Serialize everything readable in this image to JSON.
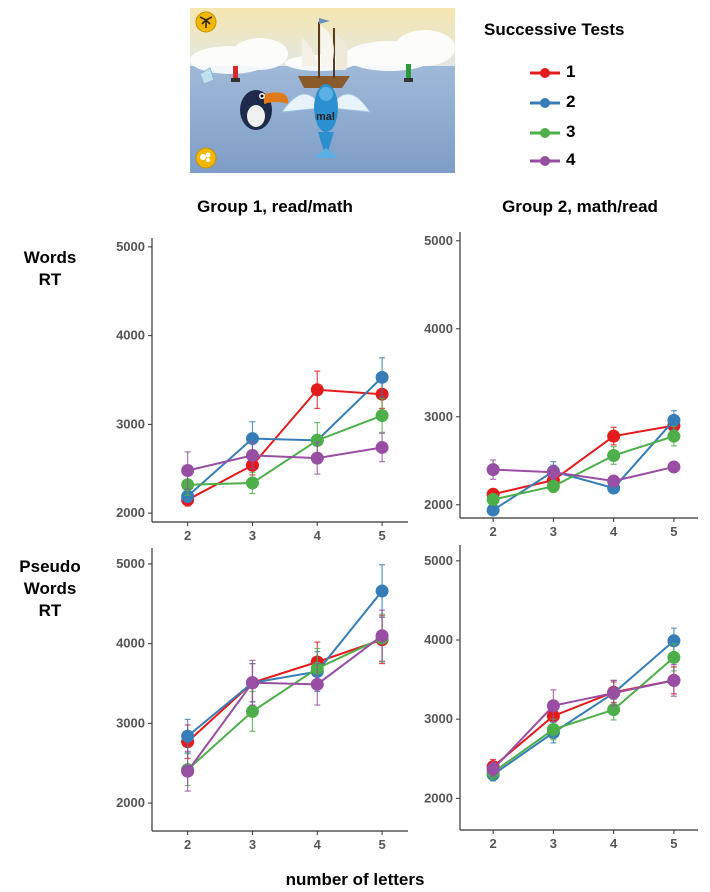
{
  "legend": {
    "title": "Successive Tests",
    "items": [
      {
        "label": "1",
        "color": "#e41a1c"
      },
      {
        "label": "2",
        "color": "#377eb8"
      },
      {
        "label": "3",
        "color": "#4daf4a"
      },
      {
        "label": "4",
        "color": "#984ea3"
      }
    ]
  },
  "column_titles": [
    "Group 1, read/math",
    "Group 2, math/read"
  ],
  "row_labels": [
    "Words\nRT",
    "Pseudo\nWords\nRT"
  ],
  "xlabel": "number of letters",
  "game_image": {
    "word": "mal",
    "icons": [
      "palm-tree-icon",
      "shell-icon",
      "toucan-icon",
      "flying-fish-icon",
      "ship-icon",
      "buoy-icon"
    ]
  },
  "chart_data": [
    {
      "type": "line",
      "title": "Group 1, read/math",
      "row": "Words RT",
      "x": [
        2,
        3,
        4,
        5
      ],
      "ylim": [
        1900,
        5100
      ],
      "yticks": [
        2000,
        3000,
        4000,
        5000
      ],
      "series": [
        {
          "name": "1",
          "values": [
            2150,
            2540,
            3390,
            3340
          ],
          "err": [
            70,
            110,
            210,
            160
          ]
        },
        {
          "name": "2",
          "values": [
            2190,
            2840,
            2820,
            3530
          ],
          "err": [
            70,
            190,
            0,
            220
          ]
        },
        {
          "name": "3",
          "values": [
            2320,
            2340,
            2820,
            3100
          ],
          "err": [
            120,
            120,
            200,
            190
          ]
        },
        {
          "name": "4",
          "values": [
            2480,
            2650,
            2620,
            2740
          ],
          "err": [
            210,
            150,
            180,
            160
          ]
        }
      ]
    },
    {
      "type": "line",
      "title": "Group 2, math/read",
      "row": "Words RT",
      "x": [
        2,
        3,
        4,
        5
      ],
      "ylim": [
        1850,
        5100
      ],
      "yticks": [
        2000,
        3000,
        4000,
        5000
      ],
      "series": [
        {
          "name": "1",
          "values": [
            2120,
            2280,
            2780,
            2900
          ],
          "err": [
            60,
            70,
            100,
            90
          ]
        },
        {
          "name": "2",
          "values": [
            1940,
            2380,
            2190,
            2960
          ],
          "err": [
            50,
            110,
            60,
            110
          ]
        },
        {
          "name": "3",
          "values": [
            2060,
            2210,
            2560,
            2780
          ],
          "err": [
            60,
            70,
            100,
            110
          ]
        },
        {
          "name": "4",
          "values": [
            2400,
            2370,
            2270,
            2430
          ],
          "err": [
            110,
            80,
            60,
            60
          ]
        }
      ]
    },
    {
      "type": "line",
      "title": "Group 1, read/math",
      "row": "Pseudo Words RT",
      "x": [
        2,
        3,
        4,
        5
      ],
      "ylim": [
        1650,
        5200
      ],
      "yticks": [
        2000,
        3000,
        4000,
        5000
      ],
      "series": [
        {
          "name": "1",
          "values": [
            2770,
            3510,
            3770,
            4050
          ],
          "err": [
            210,
            240,
            250,
            300
          ]
        },
        {
          "name": "2",
          "values": [
            2840,
            3510,
            3650,
            4660
          ],
          "err": [
            210,
            240,
            250,
            330
          ]
        },
        {
          "name": "3",
          "values": [
            2420,
            3150,
            3690,
            4070
          ],
          "err": [
            200,
            250,
            250,
            300
          ]
        },
        {
          "name": "4",
          "values": [
            2400,
            3510,
            3490,
            4100
          ],
          "err": [
            250,
            280,
            260,
            320
          ]
        }
      ]
    },
    {
      "type": "line",
      "title": "Group 2, math/read",
      "row": "Pseudo Words RT",
      "x": [
        2,
        3,
        4,
        5
      ],
      "ylim": [
        1600,
        5200
      ],
      "yticks": [
        2000,
        3000,
        4000,
        5000
      ],
      "series": [
        {
          "name": "1",
          "values": [
            2400,
            3040,
            3340,
            3490
          ],
          "err": [
            90,
            140,
            130,
            170
          ]
        },
        {
          "name": "2",
          "values": [
            2300,
            2830,
            3330,
            3990
          ],
          "err": [
            80,
            130,
            160,
            160
          ]
        },
        {
          "name": "3",
          "values": [
            2330,
            2870,
            3120,
            3780
          ],
          "err": [
            90,
            130,
            130,
            170
          ]
        },
        {
          "name": "4",
          "values": [
            2370,
            3170,
            3330,
            3490
          ],
          "err": [
            90,
            200,
            160,
            200
          ]
        }
      ]
    }
  ]
}
